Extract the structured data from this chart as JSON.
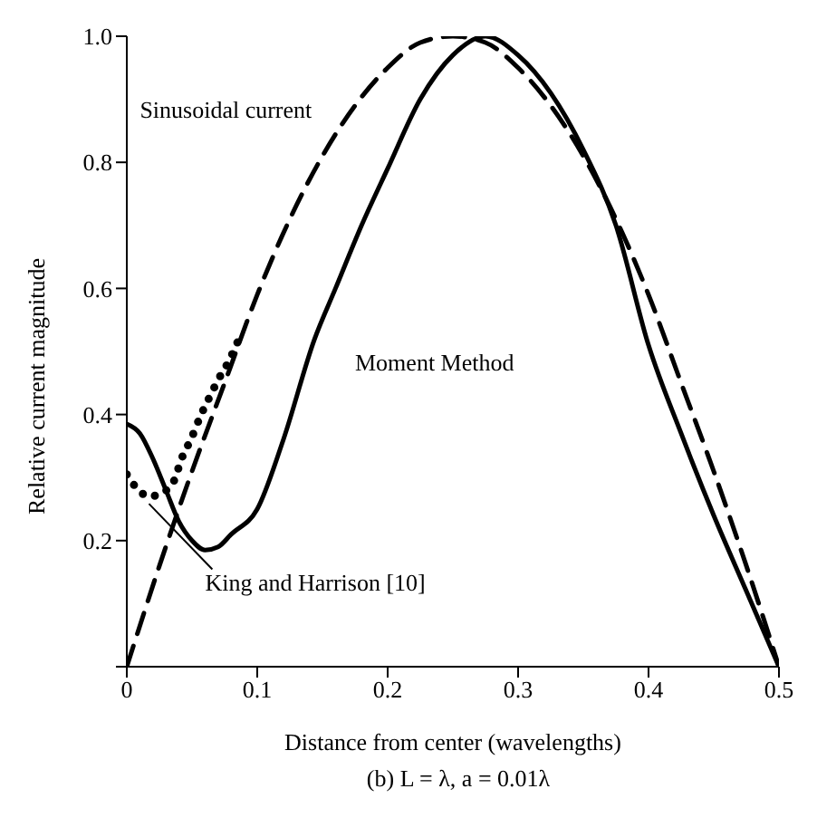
{
  "chart_data": {
    "type": "line",
    "xlabel": "Distance from center (wavelengths)",
    "ylabel": "Relative current magnitude",
    "annotations": [
      "(b) L = λ, a = 0.01λ"
    ],
    "xlim": [
      0,
      0.5
    ],
    "xticks": [
      0,
      0.1,
      0.2,
      0.3,
      0.4,
      0.5
    ],
    "ylim": [
      0,
      1.0
    ],
    "yticks": [
      {
        "value": 0,
        "label": null
      },
      0.2,
      0.4,
      0.6,
      0.8,
      {
        "value": 1.0,
        "label": "1.0"
      }
    ],
    "grid": false,
    "legend": false,
    "marker": "none",
    "series": [
      {
        "name": "Sinusoidal current",
        "color": "#000000",
        "line_style": "dashed",
        "x": [
          0,
          0.025,
          0.05,
          0.075,
          0.1,
          0.125,
          0.15,
          0.175,
          0.2,
          0.225,
          0.25,
          0.275,
          0.3,
          0.325,
          0.35,
          0.375,
          0.4,
          0.425,
          0.45,
          0.475,
          0.5
        ],
        "values": [
          0,
          0.16,
          0.31,
          0.45,
          0.59,
          0.71,
          0.81,
          0.89,
          0.95,
          0.99,
          1.0,
          0.99,
          0.95,
          0.89,
          0.81,
          0.71,
          0.59,
          0.45,
          0.31,
          0.16,
          0
        ]
      },
      {
        "name": "Moment Method",
        "color": "#000000",
        "line_style": "solid",
        "x": [
          0,
          0.01,
          0.02,
          0.03,
          0.04,
          0.05,
          0.06,
          0.07,
          0.08,
          0.1,
          0.12,
          0.144,
          0.16,
          0.18,
          0.2,
          0.225,
          0.25,
          0.275,
          0.3,
          0.325,
          0.35,
          0.375,
          0.4,
          0.425,
          0.45,
          0.475,
          0.5
        ],
        "values": [
          0.385,
          0.37,
          0.33,
          0.28,
          0.23,
          0.2,
          0.185,
          0.19,
          0.21,
          0.25,
          0.36,
          0.52,
          0.6,
          0.7,
          0.79,
          0.9,
          0.97,
          1.0,
          0.97,
          0.91,
          0.82,
          0.7,
          0.51,
          0.37,
          0.24,
          0.12,
          0
        ]
      },
      {
        "name": "King and Harrison [10]",
        "color": "#000000",
        "line_style": "dotted",
        "x": [
          0,
          0.009,
          0.017,
          0.026,
          0.035,
          0.043,
          0.049,
          0.057,
          0.064,
          0.07,
          0.077,
          0.086
        ],
        "values": [
          0.305,
          0.28,
          0.27,
          0.275,
          0.29,
          0.335,
          0.36,
          0.4,
          0.43,
          0.455,
          0.48,
          0.52
        ]
      }
    ]
  }
}
